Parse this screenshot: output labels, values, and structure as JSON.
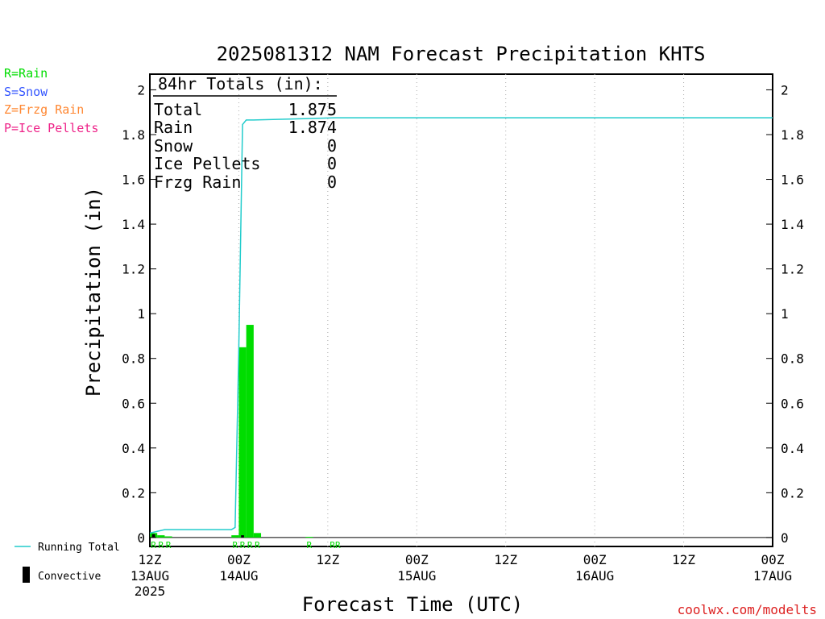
{
  "title": "2025081312 NAM Forecast Precipitation KHTS",
  "legend": {
    "items": [
      {
        "label": "R=Rain",
        "color": "#00dd00"
      },
      {
        "label": "S=Snow",
        "color": "#3355ff"
      },
      {
        "label": "Z=Frzg Rain",
        "color": "#ff8833"
      },
      {
        "label": "P=Ice Pellets",
        "color": "#ee2288"
      }
    ],
    "running_total_label": "Running Total",
    "convective_label": "Convective"
  },
  "totals": {
    "heading": "84hr Totals (in):",
    "rows": [
      {
        "label": "Total",
        "value": "1.875"
      },
      {
        "label": "Rain",
        "value": "1.874"
      },
      {
        "label": "Snow",
        "value": "0"
      },
      {
        "label": "Ice Pellets",
        "value": "0"
      },
      {
        "label": "Frzg Rain",
        "value": "0"
      }
    ]
  },
  "axes": {
    "ylabel": "Precipitation (in)",
    "xlabel": "Forecast Time (UTC)",
    "y_ticks": [
      "0",
      "0.2",
      "0.4",
      "0.6",
      "0.8",
      "1",
      "1.2",
      "1.4",
      "1.6",
      "1.8",
      "2"
    ],
    "x_ticks": [
      {
        "hour": 0,
        "label": "12Z",
        "sub": "13AUG",
        "sub2": "2025"
      },
      {
        "hour": 12,
        "label": "00Z",
        "sub": "14AUG",
        "sub2": ""
      },
      {
        "hour": 24,
        "label": "12Z",
        "sub": "",
        "sub2": ""
      },
      {
        "hour": 36,
        "label": "00Z",
        "sub": "15AUG",
        "sub2": ""
      },
      {
        "hour": 48,
        "label": "12Z",
        "sub": "",
        "sub2": ""
      },
      {
        "hour": 60,
        "label": "00Z",
        "sub": "16AUG",
        "sub2": ""
      },
      {
        "hour": 72,
        "label": "12Z",
        "sub": "",
        "sub2": ""
      },
      {
        "hour": 84,
        "label": "00Z",
        "sub": "17AUG",
        "sub2": ""
      }
    ]
  },
  "credit": "coolwx.com/modelts",
  "colors": {
    "rain": "#00dd00",
    "running_total": "#22cccc",
    "convective": "#000000",
    "axis": "#000000",
    "grid": "#aaaaaa",
    "credit": "#dd2222"
  },
  "chart_data": {
    "type": "bar",
    "title": "2025081312 NAM Forecast Precipitation KHTS",
    "xlabel": "Forecast Time (UTC)",
    "ylabel": "Precipitation (in)",
    "ylim": [
      -0.04,
      2.07
    ],
    "xlim_hours": [
      0,
      84
    ],
    "grid": "vertical dotted at 12-hour ticks",
    "series": [
      {
        "name": "Rain",
        "type": "bar",
        "x": [
          0,
          1,
          2,
          11,
          12,
          13,
          14,
          21
        ],
        "values": [
          0.02,
          0.01,
          0.005,
          0.01,
          0.85,
          0.95,
          0.02,
          0.003
        ],
        "type_letters": [
          "R",
          "R",
          "R",
          "R",
          "R",
          "R",
          "R",
          "R"
        ]
      },
      {
        "name": "Convective",
        "type": "bar",
        "x": [
          0,
          12
        ],
        "values": [
          0.015,
          0.01
        ]
      },
      {
        "name": "Running Total",
        "type": "line",
        "x": [
          0,
          2,
          11,
          11.5,
          12,
          12.5,
          13,
          14,
          25,
          84
        ],
        "values": [
          0.02,
          0.035,
          0.035,
          0.045,
          0.85,
          1.845,
          1.865,
          1.865,
          1.875,
          1.875
        ]
      }
    ],
    "extra_type_markers": [
      {
        "x": 25,
        "letters": "RR"
      }
    ]
  }
}
